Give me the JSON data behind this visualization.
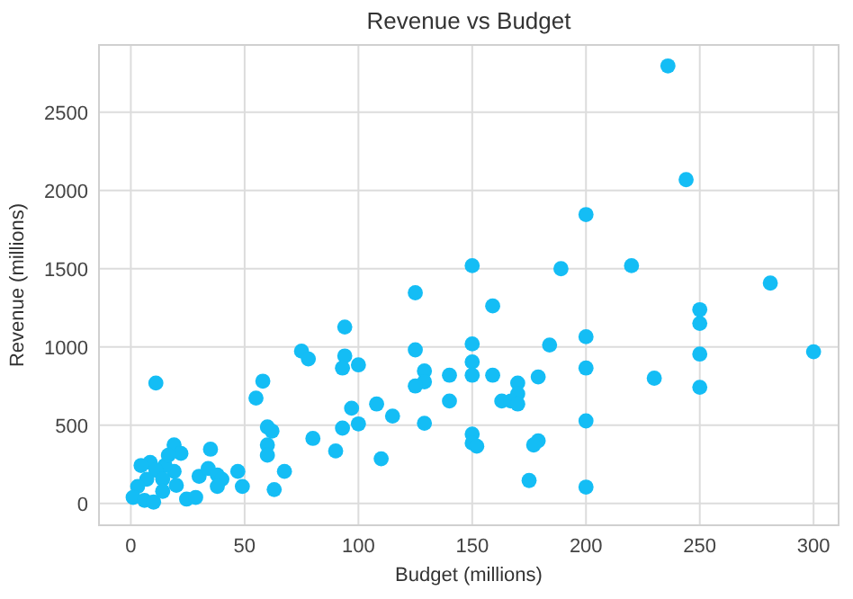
{
  "chart_data": {
    "type": "scatter",
    "title": "Revenue vs Budget",
    "xlabel": "Budget (millions)",
    "ylabel": "Revenue (millions)",
    "xlim": [
      -14,
      311
    ],
    "ylim": [
      -140,
      2930
    ],
    "xticks": [
      0,
      50,
      100,
      150,
      200,
      250,
      300
    ],
    "yticks": [
      0,
      500,
      1000,
      1500,
      2000,
      2500
    ],
    "grid": true,
    "marker": "circle",
    "series": [
      {
        "color": "#14bdf5",
        "x": [
          200,
          150,
          189,
          125,
          159,
          94,
          150,
          200,
          184,
          94,
          93,
          100,
          125,
          150,
          150,
          200,
          129,
          129,
          125,
          140,
          159,
          179,
          170,
          170,
          163,
          167,
          170,
          140,
          108,
          115,
          97,
          100,
          93,
          129,
          200,
          150,
          150,
          152,
          179,
          177,
          90,
          110,
          175,
          200,
          236,
          244,
          220,
          281,
          250,
          250,
          250,
          300,
          230,
          250,
          11,
          75,
          78,
          58,
          55,
          60,
          62,
          60,
          60,
          80,
          67.5,
          63,
          47,
          49,
          35,
          19,
          22,
          30,
          34,
          38,
          40,
          38,
          24.5,
          28.5,
          19,
          20,
          15,
          8.5,
          4.5,
          11,
          7,
          14,
          3,
          1,
          6,
          10,
          14,
          16.5
        ],
        "values": [
          1846,
          1519,
          1500,
          1346,
          1262,
          1127,
          1019,
          1065,
          1012,
          942,
          865,
          885,
          981,
          904,
          819,
          865,
          846,
          777,
          750,
          819,
          819,
          808,
          769,
          700,
          654,
          654,
          635,
          654,
          635,
          558,
          608,
          508,
          481,
          512,
          527,
          442,
          385,
          365,
          400,
          373,
          335,
          285,
          146,
          104,
          2796,
          2069,
          1519,
          1408,
          1238,
          1150,
          954,
          969,
          800,
          742,
          769,
          973,
          923,
          781,
          673,
          488,
          462,
          373,
          308,
          415,
          204,
          88,
          204,
          108,
          346,
          373,
          319,
          173,
          223,
          181,
          154,
          108,
          27,
          38,
          204,
          115,
          242,
          262,
          242,
          212,
          154,
          154,
          108,
          38,
          19,
          8,
          77,
          308
        ]
      }
    ]
  }
}
